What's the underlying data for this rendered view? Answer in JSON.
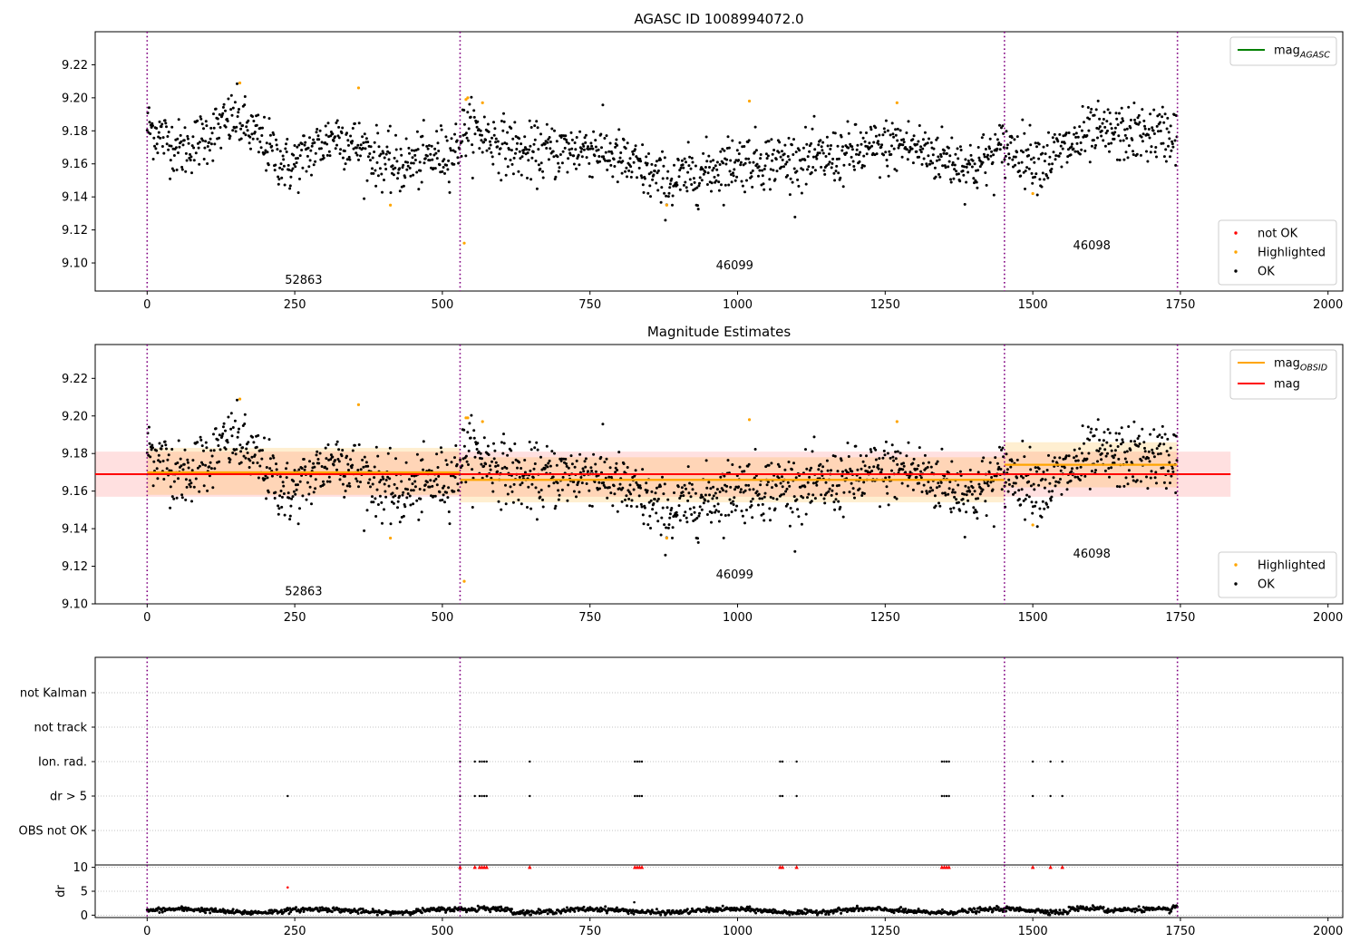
{
  "chart_data": [
    {
      "type": "scatter",
      "title": "AGASC ID 1008994072.0",
      "xlim": [
        -88,
        2025
      ],
      "ylim": [
        9.083,
        9.24
      ],
      "xticks": [
        "0",
        "250",
        "500",
        "750",
        "1000",
        "1250",
        "1500",
        "1750",
        "2000"
      ],
      "yticks": [
        "9.10",
        "9.12",
        "9.14",
        "9.16",
        "9.18",
        "9.20",
        "9.22"
      ],
      "obsid_boundaries": [
        0,
        530,
        1452,
        1745
      ],
      "obsid_labels": [
        {
          "text": "52863",
          "x": 265,
          "y": 9.09
        },
        {
          "text": "46099",
          "x": 995,
          "y": 9.099
        },
        {
          "text": "46098",
          "x": 1600,
          "y": 9.111
        }
      ],
      "legend_top": [
        {
          "label": "mag",
          "sub": "AGASC",
          "color": "#008000"
        }
      ],
      "legend_bottom": [
        {
          "label": "not OK",
          "color": "#ff0000"
        },
        {
          "label": "Highlighted",
          "color": "#ffa500"
        },
        {
          "label": "OK",
          "color": "#000000"
        }
      ],
      "highlighted_points": [
        [
          157,
          9.209
        ],
        [
          358,
          9.206
        ],
        [
          412,
          9.135
        ],
        [
          540,
          9.199
        ],
        [
          543,
          9.2
        ],
        [
          537,
          9.112
        ],
        [
          568,
          9.197
        ],
        [
          880,
          9.135
        ],
        [
          1020,
          9.198
        ],
        [
          1270,
          9.197
        ],
        [
          1500,
          9.142
        ]
      ],
      "series": [
        {
          "name": "OK",
          "color": "#000000"
        }
      ]
    },
    {
      "type": "scatter",
      "title": "Magnitude Estimates",
      "xlim": [
        -88,
        2025
      ],
      "ylim": [
        9.1,
        9.238
      ],
      "xticks": [
        "0",
        "250",
        "500",
        "750",
        "1000",
        "1250",
        "1500",
        "1750",
        "2000"
      ],
      "yticks": [
        "9.10",
        "9.12",
        "9.14",
        "9.16",
        "9.18",
        "9.20",
        "9.22"
      ],
      "obsid_boundaries": [
        0,
        530,
        1452,
        1745
      ],
      "obsid_labels": [
        {
          "text": "52863",
          "x": 265,
          "y": 9.107
        },
        {
          "text": "46099",
          "x": 995,
          "y": 9.116
        },
        {
          "text": "46098",
          "x": 1600,
          "y": 9.127
        }
      ],
      "mag": {
        "value": 9.169,
        "band": [
          9.157,
          9.181
        ],
        "x_range": [
          -88,
          1835
        ],
        "color": "#ff0000"
      },
      "mag_obsid": [
        {
          "x": [
            0,
            530
          ],
          "value": 9.17,
          "band": [
            9.158,
            9.183
          ]
        },
        {
          "x": [
            530,
            1452
          ],
          "value": 9.166,
          "band": [
            9.154,
            9.178
          ]
        },
        {
          "x": [
            1452,
            1745
          ],
          "value": 9.174,
          "band": [
            9.162,
            9.186
          ]
        }
      ],
      "legend_top": [
        {
          "label": "mag",
          "sub": "OBSID",
          "color": "#ffa500"
        },
        {
          "label": "mag",
          "sub": "",
          "color": "#ff0000"
        }
      ],
      "legend_bottom": [
        {
          "label": "Highlighted",
          "color": "#ffa500"
        },
        {
          "label": "OK",
          "color": "#000000"
        }
      ],
      "highlighted_points": [
        [
          157,
          9.209
        ],
        [
          358,
          9.206
        ],
        [
          412,
          9.135
        ],
        [
          540,
          9.199
        ],
        [
          543,
          9.199
        ],
        [
          537,
          9.112
        ],
        [
          568,
          9.197
        ],
        [
          880,
          9.135
        ],
        [
          1020,
          9.198
        ],
        [
          1270,
          9.197
        ],
        [
          1500,
          9.142
        ]
      ]
    },
    {
      "type": "scatter",
      "title": "",
      "xlim": [
        -88,
        2025
      ],
      "categories": [
        "not Kalman",
        "not track",
        "Ion. rad.",
        "dr > 5",
        "OBS not OK"
      ],
      "flag_points": {
        "Ion. rad.": [
          530,
          555,
          563,
          567,
          571,
          575,
          648,
          826,
          830,
          834,
          838,
          1072,
          1076,
          1100,
          1346,
          1350,
          1354,
          1358,
          1500,
          1530,
          1550
        ],
        "dr > 5": [
          238,
          530,
          555,
          563,
          567,
          571,
          575,
          648,
          826,
          830,
          834,
          838,
          1072,
          1076,
          1100,
          1346,
          1350,
          1354,
          1358,
          1500,
          1530,
          1550
        ]
      },
      "obsid_boundaries": [
        0,
        530,
        1452,
        1745
      ]
    },
    {
      "type": "scatter",
      "title": "",
      "xlim": [
        -88,
        2025
      ],
      "ylim": [
        -0.5,
        10.5
      ],
      "ylabel": "dr",
      "xticks": [
        "0",
        "250",
        "500",
        "750",
        "1000",
        "1250",
        "1500",
        "1750",
        "2000"
      ],
      "yticks": [
        "0",
        "5",
        "10"
      ],
      "clipped_points": [
        530,
        555,
        563,
        567,
        571,
        575,
        648,
        826,
        830,
        834,
        838,
        1072,
        1076,
        1100,
        1346,
        1350,
        1354,
        1358,
        1500,
        1530,
        1550
      ],
      "outlier_points": [
        [
          238,
          5.8
        ],
        [
          825,
          2.7
        ]
      ],
      "obsid_boundaries": [
        0,
        530,
        1452,
        1745
      ]
    }
  ]
}
